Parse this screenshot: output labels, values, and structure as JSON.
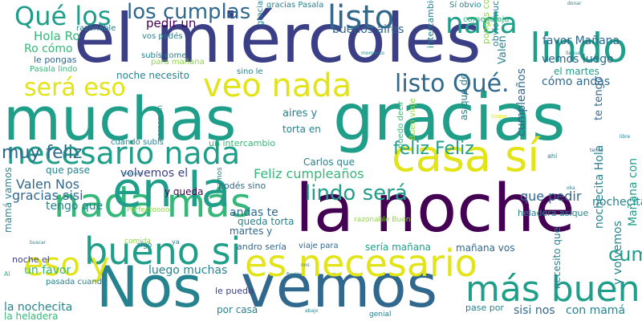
{
  "palette": {
    "purple": "#440154",
    "indigo": "#3b3f85",
    "blue": "#31688e",
    "teal": "#26828e",
    "green": "#1f9e89",
    "lightgreen": "#35b779",
    "lime": "#8fd744",
    "yellow": "#e3e418"
  },
  "words": [
    "el miércoles",
    "muchas",
    "gracias",
    "Nos",
    "vemos",
    "la noche",
    "casa sí",
    "es necesario",
    "necesario nada",
    "veo nada",
    "nada más",
    "en la",
    "bueno si",
    "lindo",
    "nada",
    "listo",
    "los cumplas",
    "Qué los",
    "será eso",
    "listo Qué.",
    "más bueno",
    "eso y",
    "feliz Feliz",
    "lindo será",
    "cumplas muy",
    "muy feliz",
    "Feliz cumpleaños",
    "Valen Nos",
    "gracias sisi",
    "buenos aires",
    "pedir un",
    "Hola Ro",
    "Ro cómo",
    "le pongas",
    "noche necesito",
    "vemos luego",
    "cómo andas",
    "el martes",
    "favor Mañana",
    "que pedir",
    "y queda",
    "andas te",
    "queda torta",
    "luego muchas",
    "un favor",
    "la nochecita",
    "la heladera",
    "torta en",
    "aires y",
    "un intercambio",
    "Carlos que",
    "cuando subís",
    "que pase",
    "volvemos el",
    "tengo que",
    "podés sino",
    "martes y",
    "andro sería",
    "viaje para",
    "sería mañana",
    "mañana vos",
    "por casa",
    "le puedo",
    "con mamá",
    "sisi nos",
    "pase por",
    "noche el",
    "heladera asique",
    "nochecita Hola",
    "y volvemos",
    "Mañana con",
    "necesito que",
    "te tengo",
    "cumpleaños",
    "Valen",
    "mamá vamos",
    "Buen viaje",
    "puedo decir",
    "asique de",
    "obvio muchas",
    "intercambio más",
    "gracias Pasala",
    "pongas comida",
    "Sí obvio",
    "come jajaja",
    "subís come",
    "vos podés",
    "razonable",
    "Pasala lindo",
    "para mañana",
    "parece un",
    "vamos",
    "sino le",
    "pasada cuando",
    "razonable Buen",
    "Perfectoooo",
    "comida",
    "buscar",
    "llegue",
    "tenés",
    "mercado",
    "abajo",
    "ficción",
    "nos",
    "toque",
    "genial",
    "momento",
    "libre",
    "donar",
    "algo",
    "oka",
    "ahí",
    "ya",
    "Al"
  ]
}
